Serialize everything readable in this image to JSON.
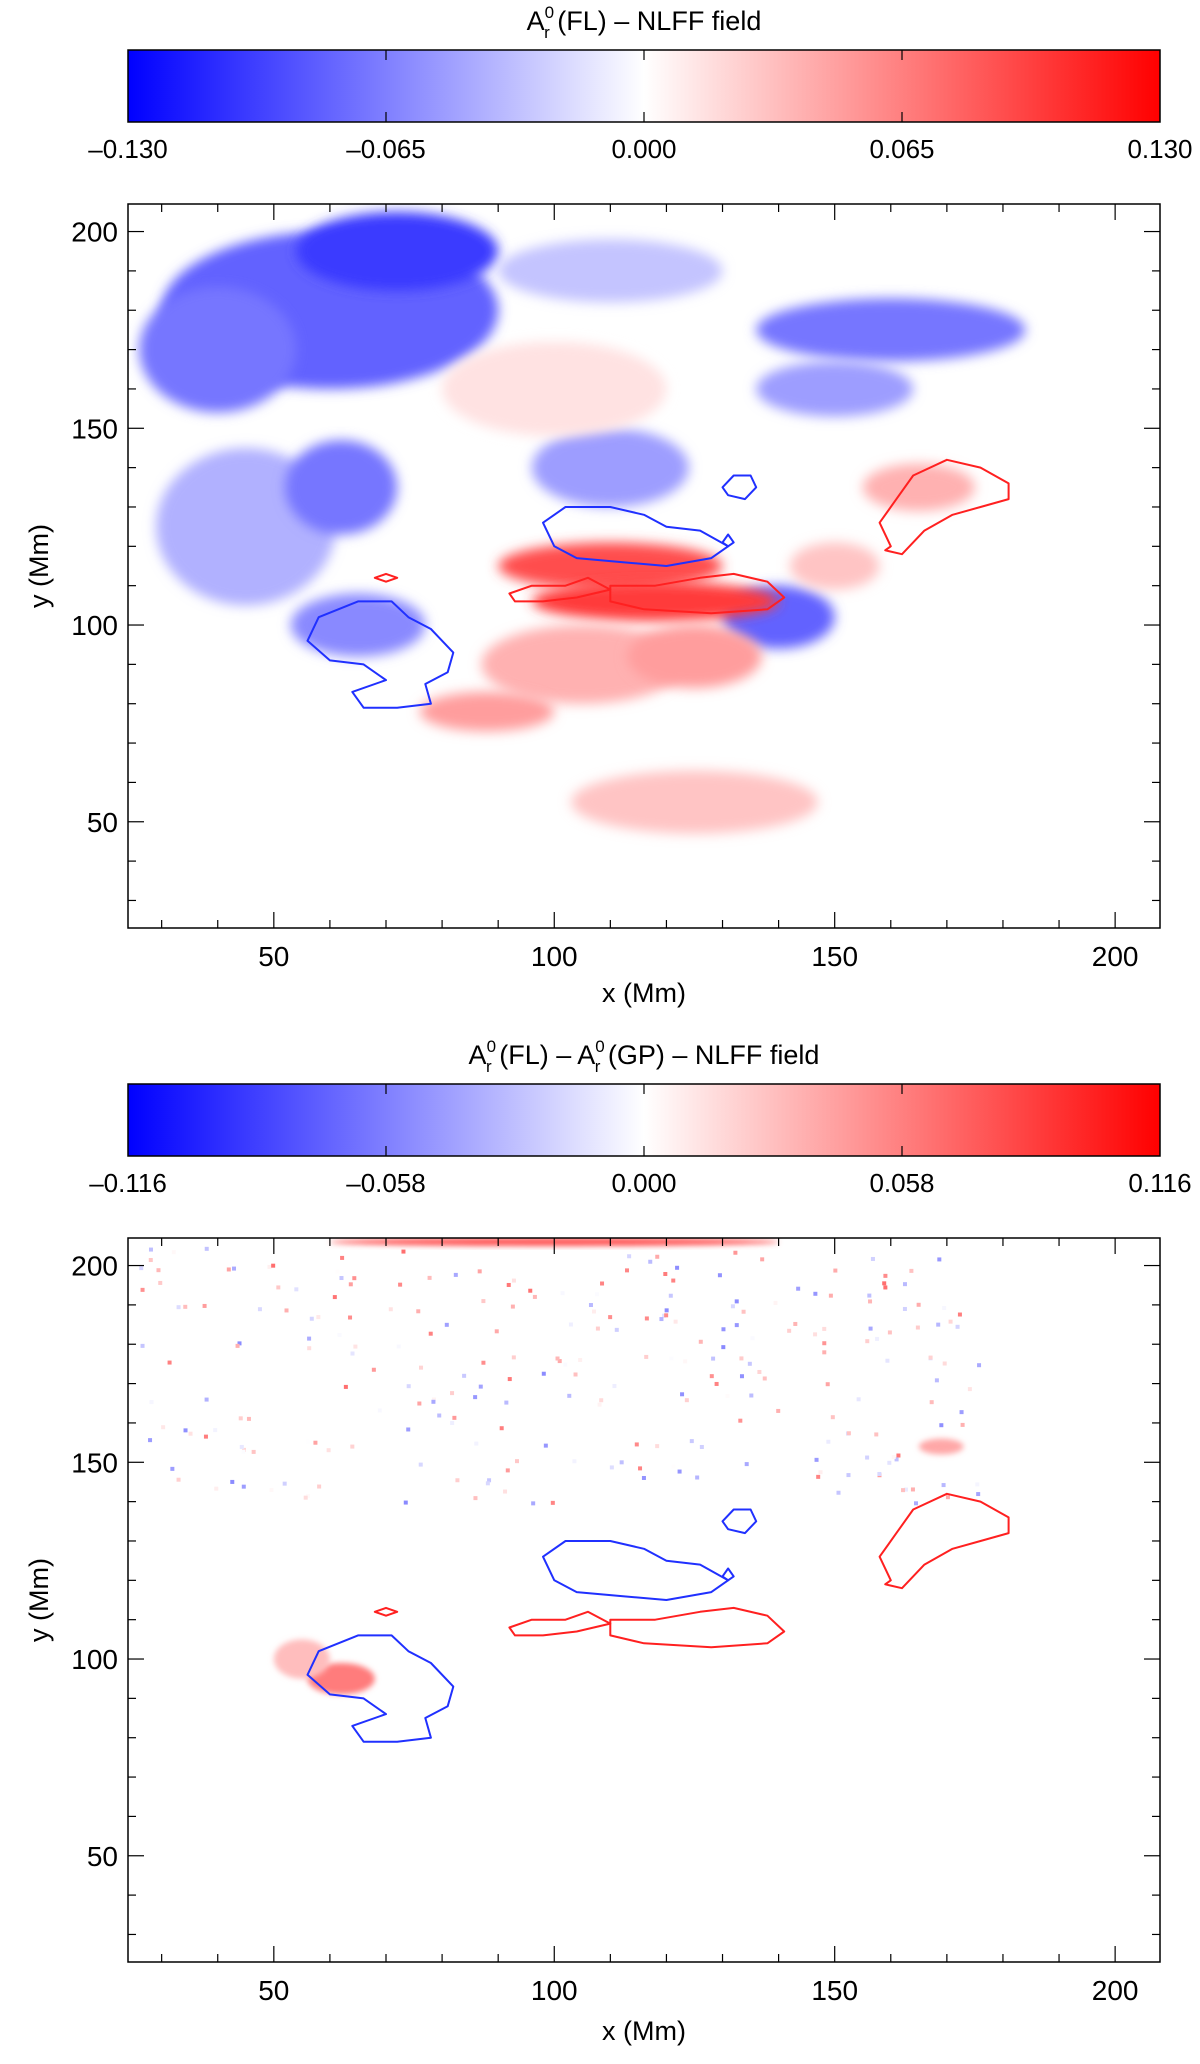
{
  "colors": {
    "negative": "#0000ff",
    "zero": "#ffffff",
    "positive": "#ff0000",
    "contour_positive": "#ff2020",
    "contour_negative": "#2030ff",
    "axis": "#000000"
  },
  "chart_data": [
    {
      "type": "heatmap",
      "title": {
        "main": "A",
        "sup": "0",
        "sub": "r",
        "rest": " (FL) – NLFF field"
      },
      "colorbar": {
        "min": -0.13,
        "max": 0.13,
        "tick_labels": [
          "–0.130",
          "–0.065",
          "0.000",
          "0.065",
          "0.130"
        ]
      },
      "xlabel": "x (Mm)",
      "ylabel": "y (Mm)",
      "xlim": [
        24,
        208
      ],
      "ylim": [
        23,
        207
      ],
      "xticks": [
        50,
        100,
        150,
        200
      ],
      "yticks": [
        50,
        100,
        150,
        200
      ],
      "xtick_labels": [
        "50",
        "100",
        "150",
        "200"
      ],
      "ytick_labels": [
        "50",
        "100",
        "150",
        "200"
      ],
      "features": [
        {
          "x": 60,
          "y": 180,
          "rx": 30,
          "ry": 20,
          "value": -0.08
        },
        {
          "x": 72,
          "y": 195,
          "rx": 18,
          "ry": 10,
          "value": -0.1
        },
        {
          "x": 40,
          "y": 170,
          "rx": 14,
          "ry": 16,
          "value": -0.07
        },
        {
          "x": 45,
          "y": 125,
          "rx": 16,
          "ry": 20,
          "value": -0.04
        },
        {
          "x": 62,
          "y": 135,
          "rx": 10,
          "ry": 12,
          "value": -0.07
        },
        {
          "x": 160,
          "y": 175,
          "rx": 24,
          "ry": 8,
          "value": -0.07
        },
        {
          "x": 150,
          "y": 160,
          "rx": 14,
          "ry": 7,
          "value": -0.05
        },
        {
          "x": 110,
          "y": 140,
          "rx": 14,
          "ry": 10,
          "value": -0.05
        },
        {
          "x": 140,
          "y": 102,
          "rx": 10,
          "ry": 8,
          "value": -0.08
        },
        {
          "x": 65,
          "y": 100,
          "rx": 12,
          "ry": 8,
          "value": -0.06
        },
        {
          "x": 110,
          "y": 190,
          "rx": 20,
          "ry": 8,
          "value": -0.03
        },
        {
          "x": 110,
          "y": 115,
          "rx": 20,
          "ry": 6,
          "value": 0.09
        },
        {
          "x": 118,
          "y": 106,
          "rx": 22,
          "ry": 5,
          "value": 0.1
        },
        {
          "x": 105,
          "y": 90,
          "rx": 18,
          "ry": 10,
          "value": 0.04
        },
        {
          "x": 125,
          "y": 92,
          "rx": 12,
          "ry": 8,
          "value": 0.05
        },
        {
          "x": 88,
          "y": 78,
          "rx": 12,
          "ry": 5,
          "value": 0.05
        },
        {
          "x": 125,
          "y": 55,
          "rx": 22,
          "ry": 8,
          "value": 0.03
        },
        {
          "x": 165,
          "y": 135,
          "rx": 10,
          "ry": 6,
          "value": 0.04
        },
        {
          "x": 150,
          "y": 115,
          "rx": 8,
          "ry": 6,
          "value": 0.03
        },
        {
          "x": 100,
          "y": 160,
          "rx": 20,
          "ry": 12,
          "value": 0.015
        }
      ]
    },
    {
      "type": "heatmap",
      "title": {
        "main": "A",
        "sup": "0",
        "sub": "r",
        "rest": " (FL) – ",
        "main2": "A",
        "sup2": "0",
        "sub2": "r",
        "rest2": " (GP) – NLFF field"
      },
      "colorbar": {
        "min": -0.116,
        "max": 0.116,
        "tick_labels": [
          "–0.116",
          "–0.058",
          "0.000",
          "0.058",
          "0.116"
        ]
      },
      "xlabel": "x (Mm)",
      "ylabel": "y (Mm)",
      "xlim": [
        24,
        208
      ],
      "ylim": [
        23,
        207
      ],
      "xticks": [
        50,
        100,
        150,
        200
      ],
      "yticks": [
        50,
        100,
        150,
        200
      ],
      "xtick_labels": [
        "50",
        "100",
        "150",
        "200"
      ],
      "ytick_labels": [
        "50",
        "100",
        "150",
        "200"
      ],
      "features": [
        {
          "x": 62,
          "y": 95,
          "rx": 6,
          "ry": 4,
          "value": 0.06
        },
        {
          "x": 55,
          "y": 100,
          "rx": 5,
          "ry": 5,
          "value": 0.03
        },
        {
          "x": 169,
          "y": 154,
          "rx": 4,
          "ry": 2,
          "value": 0.04
        },
        {
          "x": 100,
          "y": 206,
          "rx": 40,
          "ry": 1,
          "value": 0.08
        }
      ]
    }
  ],
  "contours": {
    "positive": [
      [
        [
          160,
          120
        ],
        [
          158,
          126
        ],
        [
          161,
          132
        ],
        [
          164,
          138
        ],
        [
          170,
          142
        ],
        [
          176,
          140
        ],
        [
          181,
          136
        ],
        [
          181,
          132
        ],
        [
          176,
          130
        ],
        [
          171,
          128
        ],
        [
          166,
          124
        ],
        [
          162,
          118
        ],
        [
          159,
          119
        ],
        [
          160,
          120
        ]
      ],
      [
        [
          92,
          108
        ],
        [
          96,
          110
        ],
        [
          102,
          110
        ],
        [
          106,
          112
        ],
        [
          110,
          109
        ],
        [
          104,
          107
        ],
        [
          98,
          106
        ],
        [
          93,
          106
        ],
        [
          92,
          108
        ]
      ],
      [
        [
          110,
          110
        ],
        [
          118,
          110
        ],
        [
          126,
          112
        ],
        [
          132,
          113
        ],
        [
          138,
          111
        ],
        [
          141,
          107
        ],
        [
          138,
          104
        ],
        [
          128,
          103
        ],
        [
          116,
          104
        ],
        [
          110,
          106
        ],
        [
          110,
          110
        ]
      ],
      [
        [
          68,
          112
        ],
        [
          70,
          113
        ],
        [
          72,
          112
        ],
        [
          70,
          111
        ],
        [
          68,
          112
        ]
      ]
    ],
    "negative": [
      [
        [
          100,
          120
        ],
        [
          98,
          126
        ],
        [
          102,
          130
        ],
        [
          110,
          130
        ],
        [
          116,
          128
        ],
        [
          120,
          125
        ],
        [
          126,
          124
        ],
        [
          131,
          120
        ],
        [
          128,
          117
        ],
        [
          120,
          115
        ],
        [
          112,
          116
        ],
        [
          104,
          117
        ],
        [
          100,
          120
        ]
      ],
      [
        [
          130,
          135
        ],
        [
          132,
          138
        ],
        [
          135,
          138
        ],
        [
          136,
          135
        ],
        [
          134,
          132
        ],
        [
          131,
          133
        ],
        [
          130,
          135
        ]
      ],
      [
        [
          130,
          121
        ],
        [
          131,
          123
        ],
        [
          132,
          121
        ],
        [
          131,
          120
        ],
        [
          130,
          121
        ]
      ],
      [
        [
          56,
          96
        ],
        [
          58,
          102
        ],
        [
          65,
          106
        ],
        [
          71,
          106
        ],
        [
          74,
          102
        ],
        [
          78,
          99
        ],
        [
          82,
          93
        ],
        [
          81,
          88
        ],
        [
          77,
          85
        ],
        [
          78,
          80
        ],
        [
          72,
          79
        ],
        [
          66,
          79
        ],
        [
          64,
          83
        ],
        [
          70,
          86
        ],
        [
          66,
          90
        ],
        [
          60,
          91
        ],
        [
          56,
          96
        ]
      ]
    ]
  }
}
